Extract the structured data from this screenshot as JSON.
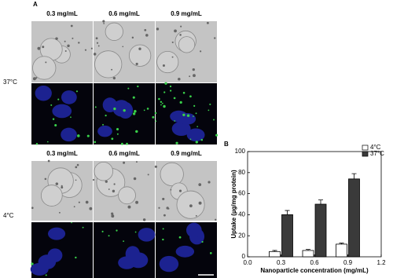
{
  "panel_a": {
    "label": "A",
    "groups": [
      {
        "row_label": "37°C",
        "column_labels": [
          "0.3 mg/mL",
          "0.6 mg/mL",
          "0.9 mg/mL"
        ]
      },
      {
        "row_label": "4°C",
        "column_labels": [
          "0.3 mg/mL",
          "0.6 mg/mL",
          "0.9 mg/mL"
        ]
      }
    ]
  },
  "chart_data": {
    "type": "bar",
    "panel_label": "B",
    "x_label": "Nanoparticle concentration (mg/mL)",
    "y_label": "Uptake (µg/mg protein)",
    "x": [
      0.3,
      0.6,
      0.9
    ],
    "xlim": [
      0,
      1.2
    ],
    "xticks": [
      {
        "value": 0,
        "label": "0.0"
      },
      0.3,
      0.6,
      0.9,
      {
        "value": 1.2,
        "label": "1.2"
      }
    ],
    "ylim": [
      0,
      100
    ],
    "yticks": [
      0,
      20,
      40,
      60,
      80,
      100
    ],
    "legend": "top-right",
    "series": [
      {
        "name": "4°C",
        "color": "#ffffff",
        "values": [
          5,
          6,
          12
        ],
        "errors": [
          1,
          1,
          1
        ]
      },
      {
        "name": "37°C",
        "color": "#3a3a3a",
        "values": [
          40,
          50,
          74
        ],
        "errors": [
          4,
          4,
          5
        ]
      }
    ]
  }
}
